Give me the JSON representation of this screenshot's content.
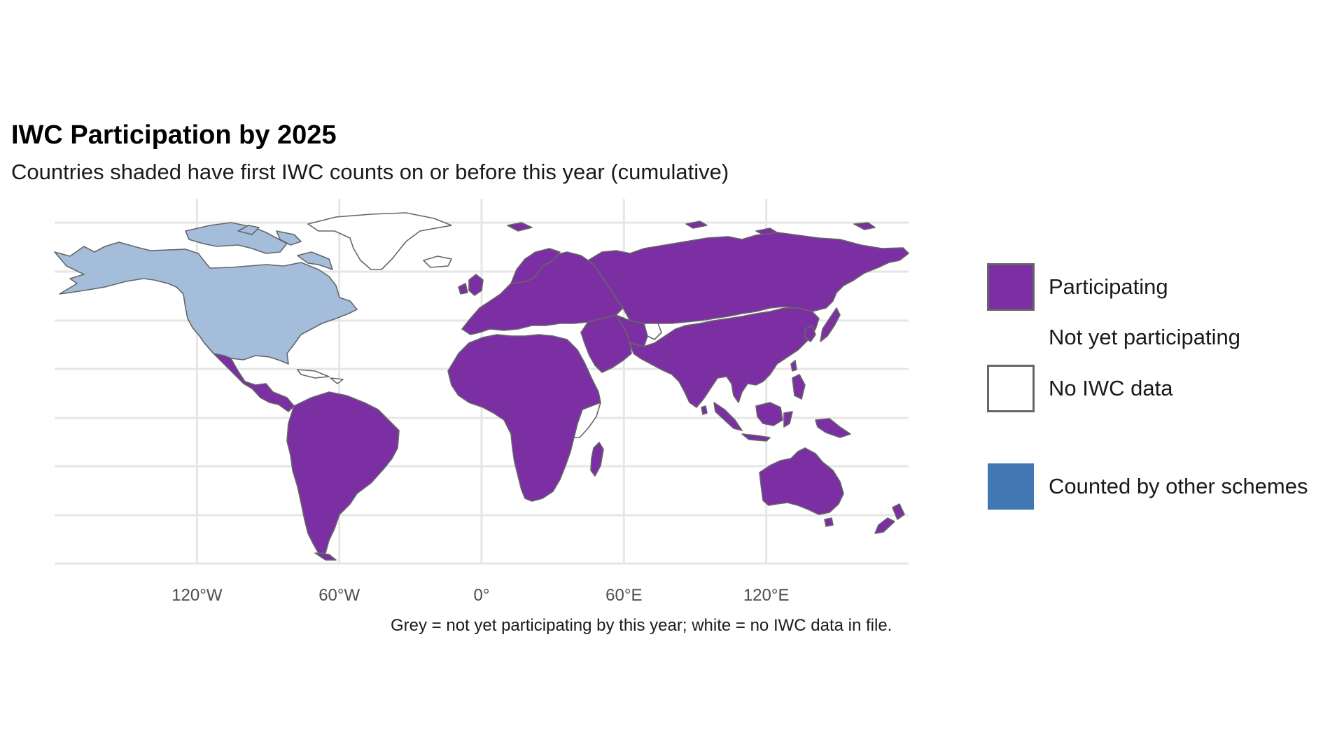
{
  "title": "IWC Participation by 2025",
  "subtitle": "Countries shaded have first IWC counts on or before this year (cumulative)",
  "caption": "Grey = not yet participating by this year; white = no IWC data in file.",
  "colors": {
    "participating": "#7b2fa3",
    "other_schemes": "#a3bddb",
    "other_schemes_key": "#4178b4",
    "no_data": "#ffffff",
    "border": "#666666",
    "grid": "#e6e6e6"
  },
  "legend": [
    {
      "label": "Participating",
      "key": "participating"
    },
    {
      "label": "Not yet participating",
      "key": "none"
    },
    {
      "label": "No IWC data",
      "key": "no_data"
    },
    {
      "label": "Counted by other schemes",
      "key": "other_schemes_key"
    }
  ],
  "chart_data": {
    "type": "map",
    "projection": "equirectangular",
    "x_ticks": [
      "120°W",
      "60°W",
      "0°",
      "60°E",
      "120°E"
    ],
    "x_tick_values": [
      -120,
      -60,
      0,
      60,
      120
    ],
    "lon_range": [
      -180,
      180
    ],
    "lat_range": [
      -58,
      84
    ],
    "grid": true,
    "legend_position": "right",
    "regions": [
      {
        "name": "North America (USA, Canada)",
        "status": "Counted by other schemes"
      },
      {
        "name": "Greenland",
        "status": "No IWC data"
      },
      {
        "name": "Mexico & Central America",
        "status": "Participating"
      },
      {
        "name": "South America",
        "status": "Participating"
      },
      {
        "name": "Europe",
        "status": "Participating"
      },
      {
        "name": "Africa",
        "status": "Participating"
      },
      {
        "name": "Middle East",
        "status": "Participating"
      },
      {
        "name": "Russia & Central Asia",
        "status": "Participating"
      },
      {
        "name": "South & East Asia",
        "status": "Participating"
      },
      {
        "name": "Southeast Asia & Indonesia",
        "status": "Participating"
      },
      {
        "name": "Australia & New Zealand",
        "status": "Participating"
      },
      {
        "name": "Somalia",
        "status": "No IWC data"
      },
      {
        "name": "Afghanistan",
        "status": "No IWC data"
      }
    ]
  }
}
